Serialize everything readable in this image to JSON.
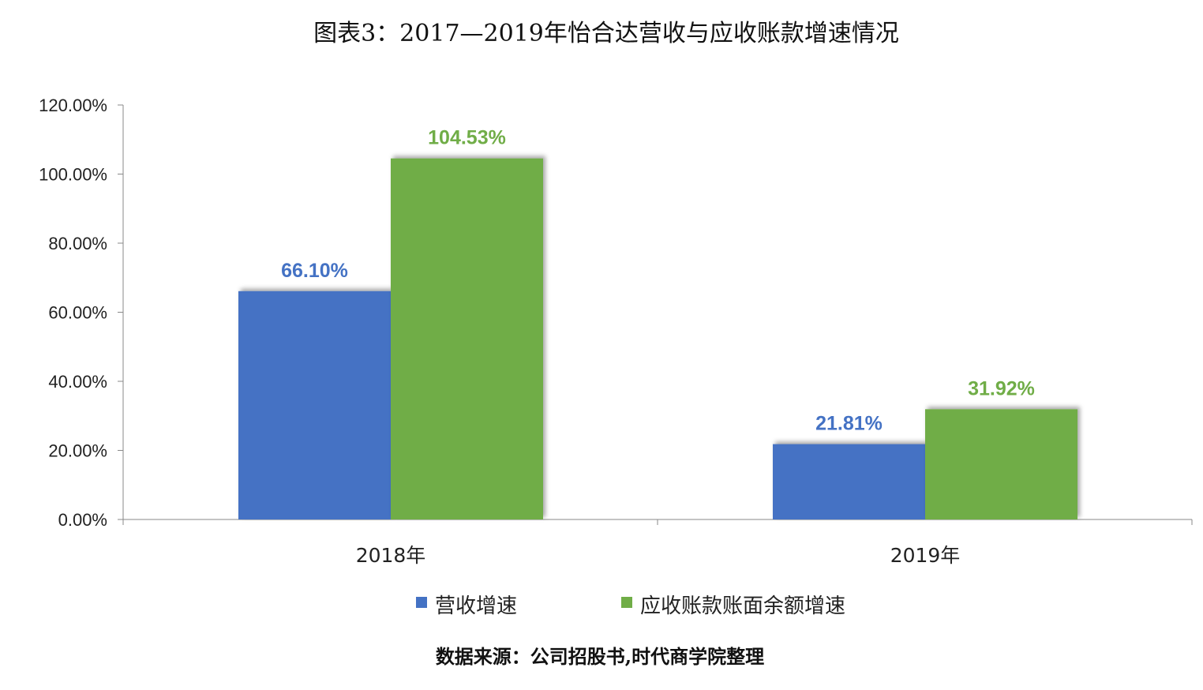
{
  "title": "图表3：2017—2019年怡合达营收与应收账款增速情况",
  "source": "数据来源：公司招股书,时代商学院整理",
  "chart_data": {
    "type": "bar",
    "categories": [
      "2018年",
      "2019年"
    ],
    "series": [
      {
        "name": "营收增速",
        "values": [
          66.1,
          21.81
        ],
        "labels": [
          "66.10%",
          "21.81%"
        ],
        "color": "#4472C4"
      },
      {
        "name": "应收账款账面余额增速",
        "values": [
          104.53,
          31.92
        ],
        "labels": [
          "104.53%",
          "31.92%"
        ],
        "color": "#70AD47"
      }
    ],
    "ylim": [
      0,
      120
    ],
    "yticks": [
      0,
      20,
      40,
      60,
      80,
      100,
      120
    ],
    "ytick_labels": [
      "0.00%",
      "20.00%",
      "40.00%",
      "60.00%",
      "80.00%",
      "100.00%",
      "120.00%"
    ],
    "grid": false,
    "legend_position": "bottom"
  }
}
